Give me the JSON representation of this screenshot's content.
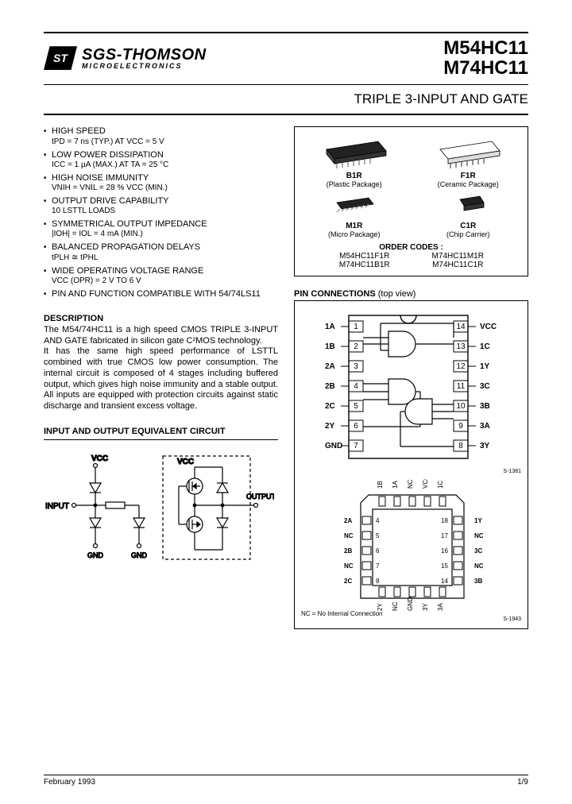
{
  "company": {
    "name": "SGS-THOMSON",
    "tagline": "MICROELECTRONICS",
    "logo_text": "ST"
  },
  "part_numbers": [
    "M54HC11",
    "M74HC11"
  ],
  "subtitle": "TRIPLE 3-INPUT AND GATE",
  "features": [
    {
      "head": "HIGH SPEED",
      "sub": "tPD = 7 ns (TYP.) AT VCC = 5 V"
    },
    {
      "head": "LOW POWER DISSIPATION",
      "sub": "ICC = 1 µA (MAX.) AT TA = 25 °C"
    },
    {
      "head": "HIGH NOISE IMMUNITY",
      "sub": "VNIH = VNIL = 28 % VCC (MIN.)"
    },
    {
      "head": "OUTPUT DRIVE CAPABILITY",
      "sub": "10 LSTTL LOADS"
    },
    {
      "head": "SYMMETRICAL OUTPUT IMPEDANCE",
      "sub": "|IOH| = IOL = 4 mA (MIN.)"
    },
    {
      "head": "BALANCED PROPAGATION DELAYS",
      "sub": "tPLH ≅ tPHL"
    },
    {
      "head": "WIDE OPERATING VOLTAGE RANGE",
      "sub": "VCC (OPR) = 2 V TO 6 V"
    },
    {
      "head": "PIN AND FUNCTION COMPATIBLE WITH 54/74LS11",
      "sub": ""
    }
  ],
  "packages": {
    "items": [
      {
        "name": "B1R",
        "desc": "(Plastic Package)"
      },
      {
        "name": "F1R",
        "desc": "(Ceramic Package)"
      },
      {
        "name": "M1R",
        "desc": "(Micro Package)"
      },
      {
        "name": "C1R",
        "desc": "(Chip Carrier)"
      }
    ],
    "order_title": "ORDER CODES :",
    "codes": [
      "M54HC11F1R",
      "M74HC11M1R",
      "M74HC11B1R",
      "M74HC11C1R"
    ]
  },
  "description": {
    "heading": "DESCRIPTION",
    "para1": "The M54/74HC11 is a high speed CMOS TRIPLE 3-INPUT AND GATE fabricated in silicon gate C²MOS technology.",
    "para2": "It has the same high speed performance of LSTTL combined with true CMOS low power consumption. The internal circuit is composed of 4 stages including buffered output, which gives high noise immunity and a stable output. All inputs are equipped with protection circuits against static discharge and transient excess voltage."
  },
  "eq_circuit": {
    "heading": "INPUT AND OUTPUT EQUIVALENT CIRCUIT",
    "labels": {
      "vcc": "VCC",
      "input": "INPUT",
      "output": "OUTPUT",
      "gnd": "GND"
    },
    "line_color": "#000000"
  },
  "pin_connections": {
    "heading": "PIN CONNECTIONS",
    "sub": "(top view)",
    "dip": {
      "left_labels": [
        "1A",
        "1B",
        "2A",
        "2B",
        "2C",
        "2Y",
        "GND"
      ],
      "left_pins": [
        1,
        2,
        3,
        4,
        5,
        6,
        7
      ],
      "right_labels": [
        "VCC",
        "1C",
        "1Y",
        "3C",
        "3B",
        "3A",
        "3Y"
      ],
      "right_pins": [
        14,
        13,
        12,
        11,
        10,
        9,
        8
      ]
    },
    "plcc": {
      "top_labels": [
        "1B",
        "1A",
        "NC",
        "VCC",
        "1C"
      ],
      "left_rows": [
        {
          "l": "2A",
          "p": 4
        },
        {
          "l": "NC",
          "p": 5
        },
        {
          "l": "2B",
          "p": 6
        },
        {
          "l": "NC",
          "p": 7
        },
        {
          "l": "2C",
          "p": 8
        }
      ],
      "right_rows": [
        {
          "l": "1Y",
          "p": 18
        },
        {
          "l": "NC",
          "p": 17
        },
        {
          "l": "3C",
          "p": 16
        },
        {
          "l": "NC",
          "p": 15
        },
        {
          "l": "3B",
          "p": 14
        }
      ],
      "bottom_labels": [
        "2Y",
        "NC",
        "GND",
        "3Y",
        "3A"
      ]
    },
    "nc_note": "NC = No Internal Connection"
  },
  "footer": {
    "date": "February 1993",
    "page": "1/9"
  },
  "colors": {
    "text": "#000000",
    "rule": "#000000",
    "background": "#ffffff"
  }
}
